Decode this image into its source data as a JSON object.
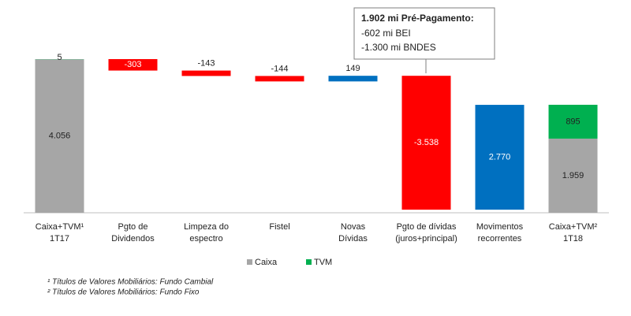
{
  "chart_data": {
    "type": "waterfall",
    "categories": [
      [
        "Caixa+TVM¹",
        "1T17"
      ],
      [
        "Pgto de",
        "Dividendos"
      ],
      [
        "Limpeza do",
        "espectro"
      ],
      [
        "Fistel"
      ],
      [
        "Novas",
        "Dívidas"
      ],
      [
        "Pgto de dívidas",
        "(juros+principal)"
      ],
      [
        "Movimentos",
        "recorrentes"
      ],
      [
        "Caixa+TVM²",
        "1T18"
      ]
    ],
    "series": [
      {
        "name": "Caixa",
        "color": "#a6a6a6",
        "values": [
          4056,
          null,
          null,
          null,
          null,
          null,
          null,
          1959
        ],
        "value_labels": [
          "4.056",
          null,
          null,
          null,
          null,
          null,
          null,
          "1.959"
        ]
      },
      {
        "name": "TVM",
        "color": "#00b050",
        "values": [
          5,
          null,
          null,
          null,
          null,
          null,
          null,
          895
        ],
        "value_labels": [
          "5",
          null,
          null,
          null,
          null,
          null,
          null,
          "895"
        ]
      }
    ],
    "changes": {
      "values": [
        null,
        -303,
        -143,
        -144,
        149,
        -3538,
        2770,
        null
      ],
      "value_labels": [
        null,
        "-303",
        "-143",
        "-144",
        "149",
        "-3.538",
        "2.770",
        null
      ],
      "negative_color": "#ff0000",
      "positive_color": "#0070c0"
    },
    "annotation": {
      "title": "1.902 mi Pré-Pagamento:",
      "lines": [
        "-602 mi BEI",
        "-1.300 mi BNDES"
      ]
    },
    "footnotes": [
      "¹ Títulos de Valores Mobiliários: Fundo Cambial",
      "² Títulos de Valores Mobiliários: Fundo Fixo"
    ]
  }
}
